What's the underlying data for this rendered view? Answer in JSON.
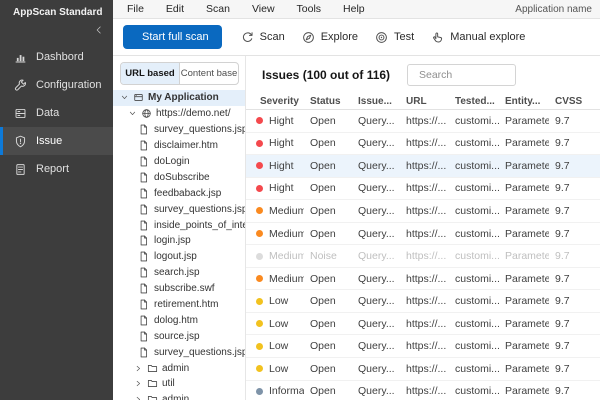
{
  "colors": {
    "accent": "#0a69c0",
    "accent_bright": "#0d7ad9"
  },
  "brand": {
    "name": "AppScan Standard"
  },
  "menubar": {
    "items": [
      "File",
      "Edit",
      "Scan",
      "View",
      "Tools",
      "Help"
    ],
    "right_label": "Application name"
  },
  "sidebar": {
    "items": [
      {
        "label": "Dashbord",
        "icon": "dashboard-icon",
        "selected": false
      },
      {
        "label": "Configuration",
        "icon": "configuration-icon",
        "selected": false
      },
      {
        "label": "Data",
        "icon": "data-icon",
        "selected": false
      },
      {
        "label": "Issue",
        "icon": "issue-icon",
        "selected": true
      },
      {
        "label": "Report",
        "icon": "report-icon",
        "selected": false
      }
    ]
  },
  "toolbar": {
    "primary_button": "Start full scan",
    "actions": [
      {
        "label": "Scan",
        "icon": "refresh-icon"
      },
      {
        "label": "Explore",
        "icon": "compass-icon"
      },
      {
        "label": "Test",
        "icon": "target-icon"
      },
      {
        "label": "Manual explore",
        "icon": "hand-pointer-icon"
      }
    ]
  },
  "explorer": {
    "tabs": [
      {
        "label": "URL based",
        "active": true
      },
      {
        "label": "Content base",
        "active": false
      }
    ],
    "tree": [
      {
        "label": "My Application",
        "type": "app",
        "chevron": "down",
        "selected": true
      },
      {
        "label": "https://demo.net/",
        "type": "site",
        "chevron": "down"
      },
      {
        "label": "survey_questions.jsp",
        "type": "file"
      },
      {
        "label": "disclaimer.htm",
        "type": "file"
      },
      {
        "label": "doLogin",
        "type": "file"
      },
      {
        "label": "doSubscribe",
        "type": "file"
      },
      {
        "label": "feedbaback.jsp",
        "type": "file"
      },
      {
        "label": "survey_questions.jsp",
        "type": "file"
      },
      {
        "label": "inside_points_of_inter",
        "type": "file"
      },
      {
        "label": "login.jsp",
        "type": "file"
      },
      {
        "label": "logout.jsp",
        "type": "file"
      },
      {
        "label": "search.jsp",
        "type": "file"
      },
      {
        "label": "subscribe.swf",
        "type": "file"
      },
      {
        "label": "retirement.htm",
        "type": "file"
      },
      {
        "label": "dolog.htm",
        "type": "file"
      },
      {
        "label": "source.jsp",
        "type": "file"
      },
      {
        "label": "survey_questions.jsp",
        "type": "file"
      },
      {
        "label": "admin",
        "type": "folder",
        "chevron": "right"
      },
      {
        "label": "util",
        "type": "folder",
        "chevron": "right"
      },
      {
        "label": "admin",
        "type": "folder",
        "chevron": "right"
      }
    ]
  },
  "issues": {
    "title": "Issues (100 out of 116)",
    "search_placeholder": "Search",
    "columns": [
      "Severity",
      "Status",
      "Issue...",
      "URL",
      "Tested...",
      "Entity...",
      "CVSS"
    ],
    "severity_colors": {
      "high": "#f4494d",
      "medium": "#fa8a20",
      "low": "#f2c21f",
      "info": "#7e93a8",
      "noise": "#dcdcdc"
    },
    "rows": [
      {
        "severity": "Hight",
        "level": "high",
        "status": "Open",
        "issue": "Query...",
        "url": "https://...",
        "tested": "customi...",
        "entity": "Parameter",
        "cvss": "9.7",
        "selected": false,
        "noise": false
      },
      {
        "severity": "Hight",
        "level": "high",
        "status": "Open",
        "issue": "Query...",
        "url": "https://...",
        "tested": "customi...",
        "entity": "Parameter",
        "cvss": "9.7",
        "selected": false,
        "noise": false
      },
      {
        "severity": "Hight",
        "level": "high",
        "status": "Open",
        "issue": "Query...",
        "url": "https://...",
        "tested": "customi...",
        "entity": "Parameter",
        "cvss": "9.7",
        "selected": true,
        "noise": false
      },
      {
        "severity": "Hight",
        "level": "high",
        "status": "Open",
        "issue": "Query...",
        "url": "https://...",
        "tested": "customi...",
        "entity": "Parameter",
        "cvss": "9.7",
        "selected": false,
        "noise": false
      },
      {
        "severity": "Medium",
        "level": "medium",
        "status": "Open",
        "issue": "Query...",
        "url": "https://...",
        "tested": "customi...",
        "entity": "Parameter",
        "cvss": "9.7",
        "selected": false,
        "noise": false
      },
      {
        "severity": "Medium",
        "level": "medium",
        "status": "Open",
        "issue": "Query...",
        "url": "https://...",
        "tested": "customi...",
        "entity": "Parameter",
        "cvss": "9.7",
        "selected": false,
        "noise": false
      },
      {
        "severity": "Medium",
        "level": "medium",
        "status": "Noise",
        "issue": "Query...",
        "url": "https://...",
        "tested": "customi...",
        "entity": "Parameter",
        "cvss": "9.7",
        "selected": false,
        "noise": true
      },
      {
        "severity": "Medium",
        "level": "medium",
        "status": "Open",
        "issue": "Query...",
        "url": "https://...",
        "tested": "customi...",
        "entity": "Parameter",
        "cvss": "9.7",
        "selected": false,
        "noise": false
      },
      {
        "severity": "Low",
        "level": "low",
        "status": "Open",
        "issue": "Query...",
        "url": "https://...",
        "tested": "customi...",
        "entity": "Parameter",
        "cvss": "9.7",
        "selected": false,
        "noise": false
      },
      {
        "severity": "Low",
        "level": "low",
        "status": "Open",
        "issue": "Query...",
        "url": "https://...",
        "tested": "customi...",
        "entity": "Parameter",
        "cvss": "9.7",
        "selected": false,
        "noise": false
      },
      {
        "severity": "Low",
        "level": "low",
        "status": "Open",
        "issue": "Query...",
        "url": "https://...",
        "tested": "customi...",
        "entity": "Parameter",
        "cvss": "9.7",
        "selected": false,
        "noise": false
      },
      {
        "severity": "Low",
        "level": "low",
        "status": "Open",
        "issue": "Query...",
        "url": "https://...",
        "tested": "customi...",
        "entity": "Parameter",
        "cvss": "9.7",
        "selected": false,
        "noise": false
      },
      {
        "severity": "Informatic",
        "level": "info",
        "status": "Open",
        "issue": "Query...",
        "url": "https://...",
        "tested": "customi...",
        "entity": "Parameter",
        "cvss": "9.7",
        "selected": false,
        "noise": false
      }
    ]
  }
}
